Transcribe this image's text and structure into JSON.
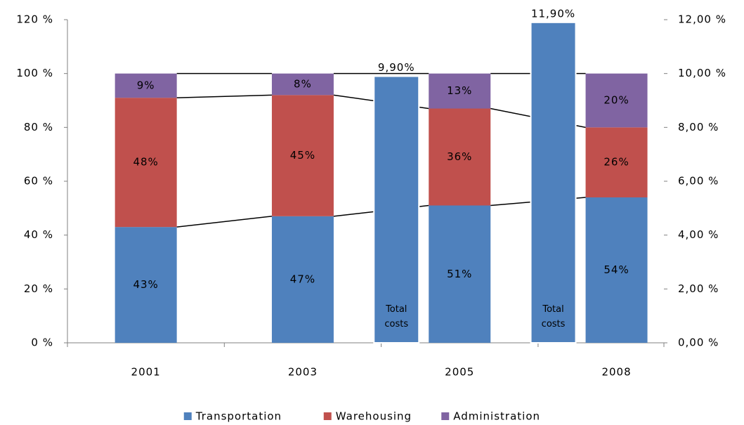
{
  "chart_data": {
    "type": "bar",
    "stacked": true,
    "categories": [
      "2001",
      "2003",
      "2005",
      "2008"
    ],
    "series": [
      {
        "name": "Transportation",
        "color": "#4f81bd",
        "values": [
          43,
          47,
          51,
          54
        ],
        "value_labels": [
          "43%",
          "47%",
          "51%",
          "54%"
        ]
      },
      {
        "name": "Warehousing",
        "color": "#c0504d",
        "values": [
          48,
          45,
          36,
          26
        ],
        "value_labels": [
          "48%",
          "45%",
          "36%",
          "26%"
        ]
      },
      {
        "name": "Administration",
        "color": "#8064a2",
        "values": [
          9,
          8,
          13,
          20
        ],
        "value_labels": [
          "9%",
          "8%",
          "13%",
          "20%"
        ]
      },
      {
        "name": "Total costs",
        "color": "#4f81bd",
        "axis": "y2",
        "values": [
          null,
          null,
          9.9,
          11.9
        ],
        "value_labels": [
          null,
          null,
          "9,90%",
          "11,90%"
        ]
      }
    ],
    "ylim": [
      0,
      120
    ],
    "yticks": [
      {
        "value": 0,
        "label": "0 %"
      },
      {
        "value": 20,
        "label": "20 %"
      },
      {
        "value": 40,
        "label": "40 %"
      },
      {
        "value": 60,
        "label": "60 %"
      },
      {
        "value": 80,
        "label": "80 %"
      },
      {
        "value": 100,
        "label": "100 %"
      },
      {
        "value": 120,
        "label": "120 %"
      }
    ],
    "y2lim": [
      0,
      12
    ],
    "y2ticks": [
      {
        "value": 0,
        "label": "0,00 %"
      },
      {
        "value": 2,
        "label": "2,00 %"
      },
      {
        "value": 4,
        "label": "4,00 %"
      },
      {
        "value": 6,
        "label": "6,00 %"
      },
      {
        "value": 8,
        "label": "8,00 %"
      },
      {
        "value": 10,
        "label": "10,00 %"
      },
      {
        "value": 12,
        "label": "12,00 %"
      }
    ],
    "series_lines": true,
    "grid": false,
    "legend": "bottom"
  }
}
